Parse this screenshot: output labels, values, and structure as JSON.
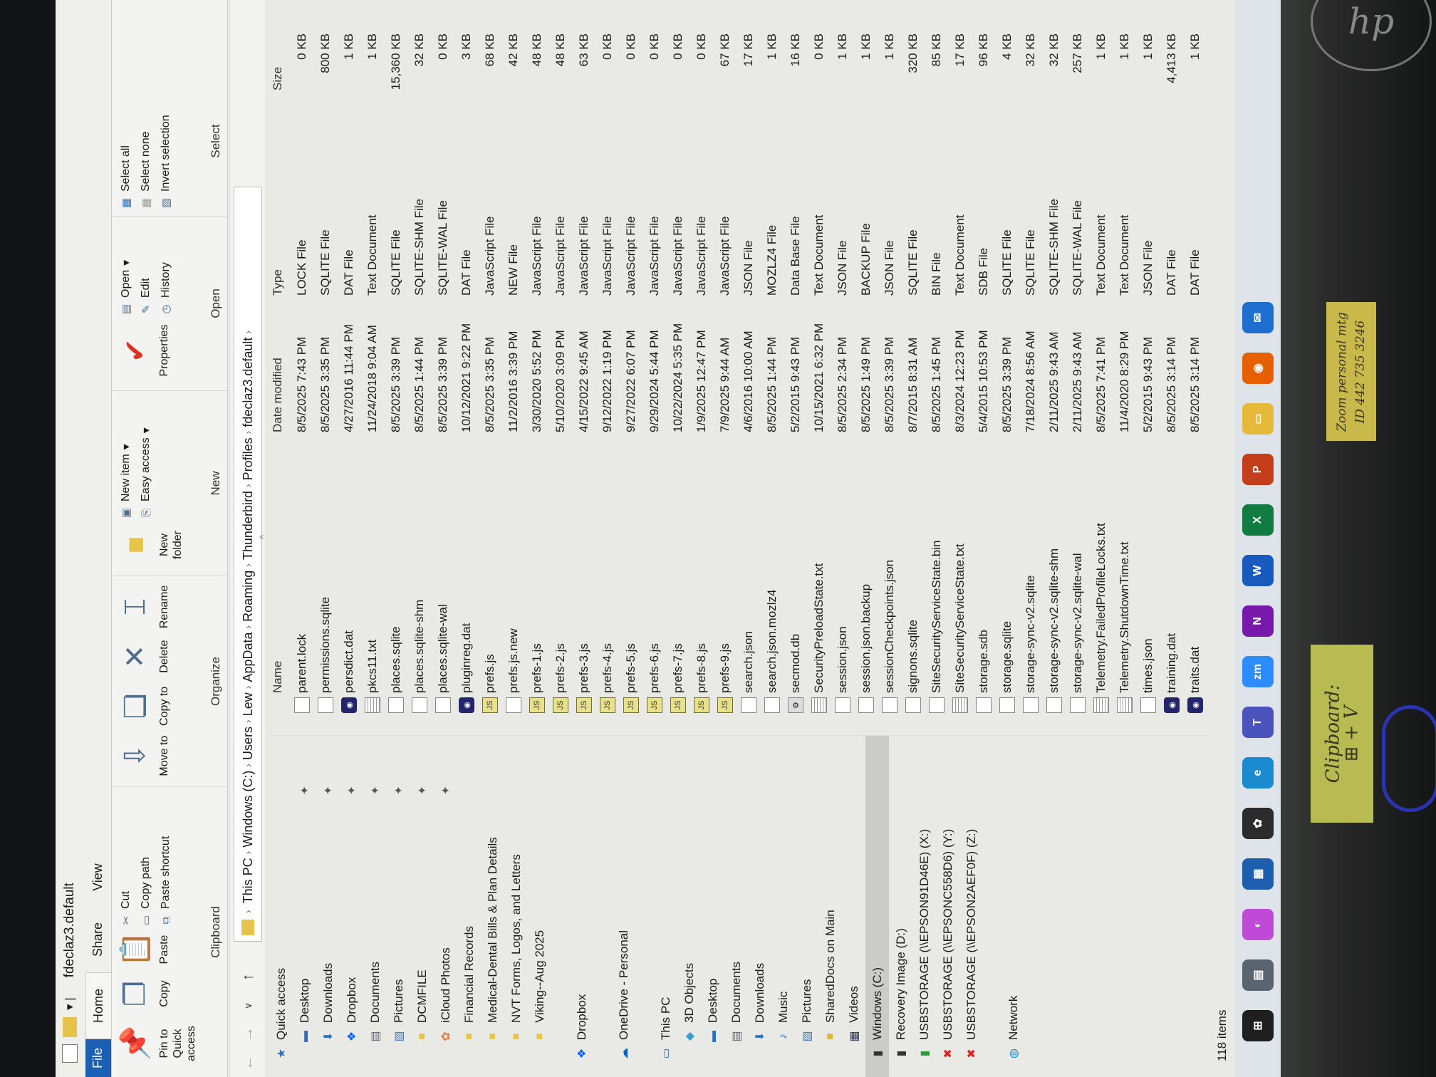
{
  "window": {
    "title": "fdeclaz3.default",
    "tabs": [
      "File",
      "Home",
      "Share",
      "View"
    ]
  },
  "ribbon": {
    "pin_label": "Pin to Quick access",
    "copy_label": "Copy",
    "paste_label": "Paste",
    "cut_label": "Cut",
    "copy_path_label": "Copy path",
    "paste_shortcut_label": "Paste shortcut",
    "clipboard_group": "Clipboard",
    "move_to_label": "Move to",
    "copy_to_label": "Copy to",
    "delete_label": "Delete",
    "rename_label": "Rename",
    "organize_group": "Organize",
    "new_folder_label": "New folder",
    "new_item_label": "New item",
    "easy_access_label": "Easy access",
    "new_group": "New",
    "properties_label": "Properties",
    "open_label": "Open",
    "edit_label": "Edit",
    "history_label": "History",
    "open_group": "Open",
    "select_all_label": "Select all",
    "select_none_label": "Select none",
    "invert_selection_label": "Invert selection",
    "select_group": "Select"
  },
  "breadcrumb": [
    "This PC",
    "Windows (C:)",
    "Users",
    "Lew",
    "AppData",
    "Roaming",
    "Thunderbird",
    "Profiles",
    "fdeclaz3.default"
  ],
  "sidebar": {
    "items": [
      {
        "label": "Quick access",
        "icon": "star-icon",
        "pinned": false
      },
      {
        "label": "Desktop",
        "icon": "desktop-icon",
        "pinned": true
      },
      {
        "label": "Downloads",
        "icon": "download-icon",
        "pinned": true
      },
      {
        "label": "Dropbox",
        "icon": "dropbox-icon",
        "pinned": true
      },
      {
        "label": "Documents",
        "icon": "documents-icon",
        "pinned": true
      },
      {
        "label": "Pictures",
        "icon": "pictures-icon",
        "pinned": true
      },
      {
        "label": "DCMFILE",
        "icon": "folder-icon",
        "pinned": true
      },
      {
        "label": "iCloud Photos",
        "icon": "icloud-photos-icon",
        "pinned": true
      },
      {
        "label": "Financial Records",
        "icon": "folder-icon",
        "pinned": false
      },
      {
        "label": "Medical-Dental Bills & Plan Details",
        "icon": "folder-icon",
        "pinned": false
      },
      {
        "label": "NVT Forms, Logos, and Letters",
        "icon": "folder-icon",
        "pinned": false
      },
      {
        "label": "Viking--Aug 2025",
        "icon": "folder-icon",
        "pinned": false
      },
      {
        "label": "Dropbox",
        "icon": "dropbox-icon",
        "pinned": false
      },
      {
        "label": "OneDrive - Personal",
        "icon": "onedrive-icon",
        "pinned": false
      },
      {
        "label": "This PC",
        "icon": "computer-icon",
        "pinned": false
      },
      {
        "label": "3D Objects",
        "icon": "3d-objects-icon",
        "pinned": false
      },
      {
        "label": "Desktop",
        "icon": "desktop-icon",
        "pinned": false
      },
      {
        "label": "Documents",
        "icon": "documents-icon",
        "pinned": false
      },
      {
        "label": "Downloads",
        "icon": "download-icon",
        "pinned": false
      },
      {
        "label": "Music",
        "icon": "music-icon",
        "pinned": false
      },
      {
        "label": "Pictures",
        "icon": "pictures-icon",
        "pinned": false
      },
      {
        "label": "SharedDocs on Main",
        "icon": "network-folder-icon",
        "pinned": false
      },
      {
        "label": "Videos",
        "icon": "videos-icon",
        "pinned": false
      },
      {
        "label": "Windows (C:)",
        "icon": "drive-icon",
        "pinned": false,
        "selected": true
      },
      {
        "label": "Recovery Image (D:)",
        "icon": "drive-icon",
        "pinned": false
      },
      {
        "label": "USBSTORAGE (\\\\EPSON91D46E) (X:)",
        "icon": "network-drive-icon",
        "pinned": false
      },
      {
        "label": "USBSTORAGE (\\\\EPSONC558D6) (Y:)",
        "icon": "disconnected-drive-icon",
        "pinned": false
      },
      {
        "label": "USBSTORAGE (\\\\EPSON2AEF0F) (Z:)",
        "icon": "disconnected-drive-icon",
        "pinned": false
      },
      {
        "label": "Network",
        "icon": "network-icon",
        "pinned": false
      }
    ]
  },
  "columns": {
    "name": "Name",
    "date": "Date modified",
    "type": "Type",
    "size": "Size"
  },
  "files": [
    {
      "name": "parent.lock",
      "date": "8/5/2025 7:43 PM",
      "type": "LOCK File",
      "size": "0 KB",
      "icon": "blank"
    },
    {
      "name": "permissions.sqlite",
      "date": "8/5/2025 3:35 PM",
      "type": "SQLITE File",
      "size": "800 KB",
      "icon": "blank"
    },
    {
      "name": "persdict.dat",
      "date": "4/27/2016 11:44 PM",
      "type": "DAT File",
      "size": "1 KB",
      "icon": "thunderbird"
    },
    {
      "name": "pkcs11.txt",
      "date": "11/24/2018 9:04 AM",
      "type": "Text Document",
      "size": "1 KB",
      "icon": "text"
    },
    {
      "name": "places.sqlite",
      "date": "8/5/2025 3:39 PM",
      "type": "SQLITE File",
      "size": "15,360 KB",
      "icon": "blank"
    },
    {
      "name": "places.sqlite-shm",
      "date": "8/5/2025 1:44 PM",
      "type": "SQLITE-SHM File",
      "size": "32 KB",
      "icon": "blank"
    },
    {
      "name": "places.sqlite-wal",
      "date": "8/5/2025 3:39 PM",
      "type": "SQLITE-WAL File",
      "size": "0 KB",
      "icon": "blank"
    },
    {
      "name": "pluginreg.dat",
      "date": "10/12/2021 9:22 PM",
      "type": "DAT File",
      "size": "3 KB",
      "icon": "thunderbird"
    },
    {
      "name": "prefs.js",
      "date": "8/5/2025 3:35 PM",
      "type": "JavaScript File",
      "size": "68 KB",
      "icon": "javascript"
    },
    {
      "name": "prefs.js.new",
      "date": "11/2/2016 3:39 PM",
      "type": "NEW File",
      "size": "42 KB",
      "icon": "blank"
    },
    {
      "name": "prefs-1.js",
      "date": "3/30/2020 5:52 PM",
      "type": "JavaScript File",
      "size": "48 KB",
      "icon": "javascript"
    },
    {
      "name": "prefs-2.js",
      "date": "5/10/2020 3:09 PM",
      "type": "JavaScript File",
      "size": "48 KB",
      "icon": "javascript"
    },
    {
      "name": "prefs-3.js",
      "date": "4/15/2022 9:45 AM",
      "type": "JavaScript File",
      "size": "63 KB",
      "icon": "javascript"
    },
    {
      "name": "prefs-4.js",
      "date": "9/12/2022 1:19 PM",
      "type": "JavaScript File",
      "size": "0 KB",
      "icon": "javascript"
    },
    {
      "name": "prefs-5.js",
      "date": "9/27/2022 6:07 PM",
      "type": "JavaScript File",
      "size": "0 KB",
      "icon": "javascript"
    },
    {
      "name": "prefs-6.js",
      "date": "9/29/2024 5:44 PM",
      "type": "JavaScript File",
      "size": "0 KB",
      "icon": "javascript"
    },
    {
      "name": "prefs-7.js",
      "date": "10/22/2024 5:35 PM",
      "type": "JavaScript File",
      "size": "0 KB",
      "icon": "javascript"
    },
    {
      "name": "prefs-8.js",
      "date": "1/9/2025 12:47 PM",
      "type": "JavaScript File",
      "size": "0 KB",
      "icon": "javascript"
    },
    {
      "name": "prefs-9.js",
      "date": "7/9/2025 9:44 AM",
      "type": "JavaScript File",
      "size": "67 KB",
      "icon": "javascript"
    },
    {
      "name": "search.json",
      "date": "4/6/2016 10:00 AM",
      "type": "JSON File",
      "size": "17 KB",
      "icon": "blank"
    },
    {
      "name": "search.json.mozlz4",
      "date": "8/5/2025 1:44 PM",
      "type": "MOZLZ4 File",
      "size": "1 KB",
      "icon": "blank"
    },
    {
      "name": "secmod.db",
      "date": "5/2/2015 9:43 PM",
      "type": "Data Base File",
      "size": "16 KB",
      "icon": "database"
    },
    {
      "name": "SecurityPreloadState.txt",
      "date": "10/15/2021 6:32 PM",
      "type": "Text Document",
      "size": "0 KB",
      "icon": "text"
    },
    {
      "name": "session.json",
      "date": "8/5/2025 2:34 PM",
      "type": "JSON File",
      "size": "1 KB",
      "icon": "blank"
    },
    {
      "name": "session.json.backup",
      "date": "8/5/2025 1:49 PM",
      "type": "BACKUP File",
      "size": "1 KB",
      "icon": "blank"
    },
    {
      "name": "sessionCheckpoints.json",
      "date": "8/5/2025 3:39 PM",
      "type": "JSON File",
      "size": "1 KB",
      "icon": "blank"
    },
    {
      "name": "signons.sqlite",
      "date": "8/7/2015 8:31 AM",
      "type": "SQLITE File",
      "size": "320 KB",
      "icon": "blank"
    },
    {
      "name": "SiteSecurityServiceState.bin",
      "date": "8/5/2025 1:45 PM",
      "type": "BIN File",
      "size": "85 KB",
      "icon": "blank"
    },
    {
      "name": "SiteSecurityServiceState.txt",
      "date": "8/3/2024 12:23 PM",
      "type": "Text Document",
      "size": "17 KB",
      "icon": "text"
    },
    {
      "name": "storage.sdb",
      "date": "5/4/2015 10:53 PM",
      "type": "SDB File",
      "size": "96 KB",
      "icon": "blank"
    },
    {
      "name": "storage.sqlite",
      "date": "8/5/2025 3:39 PM",
      "type": "SQLITE File",
      "size": "4 KB",
      "icon": "blank"
    },
    {
      "name": "storage-sync-v2.sqlite",
      "date": "7/18/2024 8:56 AM",
      "type": "SQLITE File",
      "size": "32 KB",
      "icon": "blank"
    },
    {
      "name": "storage-sync-v2.sqlite-shm",
      "date": "2/11/2025 9:43 AM",
      "type": "SQLITE-SHM File",
      "size": "32 KB",
      "icon": "blank"
    },
    {
      "name": "storage-sync-v2.sqlite-wal",
      "date": "2/11/2025 9:43 AM",
      "type": "SQLITE-WAL File",
      "size": "257 KB",
      "icon": "blank"
    },
    {
      "name": "Telemetry.FailedProfileLocks.txt",
      "date": "8/5/2025 7:41 PM",
      "type": "Text Document",
      "size": "1 KB",
      "icon": "text"
    },
    {
      "name": "Telemetry.ShutdownTime.txt",
      "date": "11/4/2020 8:29 PM",
      "type": "Text Document",
      "size": "1 KB",
      "icon": "text"
    },
    {
      "name": "times.json",
      "date": "5/2/2015 9:43 PM",
      "type": "JSON File",
      "size": "1 KB",
      "icon": "blank"
    },
    {
      "name": "training.dat",
      "date": "8/5/2025 3:14 PM",
      "type": "DAT File",
      "size": "4,413 KB",
      "icon": "thunderbird"
    },
    {
      "name": "traits.dat",
      "date": "8/5/2025 3:14 PM",
      "type": "DAT File",
      "size": "1 KB",
      "icon": "thunderbird"
    }
  ],
  "status": {
    "item_count": "118 items"
  },
  "taskbar": [
    {
      "name": "start",
      "color": "#1f1f1f",
      "glyph": "⊞"
    },
    {
      "name": "widgets",
      "color": "#5a6470",
      "glyph": "▤"
    },
    {
      "name": "copilot",
      "color": "#c04ad8",
      "glyph": "◐"
    },
    {
      "name": "microsoft-store",
      "color": "#1d5fae",
      "glyph": "▦"
    },
    {
      "name": "photos",
      "color": "#2b2b2b",
      "glyph": "✿"
    },
    {
      "name": "edge",
      "color": "#1b8bd0",
      "glyph": "e"
    },
    {
      "name": "teams",
      "color": "#4b53bc",
      "glyph": "T"
    },
    {
      "name": "zoom",
      "color": "#2d8cff",
      "glyph": "zm"
    },
    {
      "name": "onenote",
      "color": "#7719aa",
      "glyph": "N"
    },
    {
      "name": "word",
      "color": "#185abd",
      "glyph": "W"
    },
    {
      "name": "excel",
      "color": "#107c41",
      "glyph": "X"
    },
    {
      "name": "powerpoint",
      "color": "#c43e1c",
      "glyph": "P"
    },
    {
      "name": "file-explorer",
      "color": "#e6b93a",
      "glyph": "▭"
    },
    {
      "name": "firefox",
      "color": "#e66000",
      "glyph": "◉"
    },
    {
      "name": "thunderbird",
      "color": "#1f6fd0",
      "glyph": "✉"
    }
  ],
  "sticky_notes": {
    "zoom_note": "Zoom personal mtg\nID 442 735 3246",
    "clipboard_note": "Clipboard:\n⊞ + V"
  },
  "logo": "hp",
  "colors": {
    "accent": "#1a5fb4",
    "selected": "#cbcbc8",
    "folder": "#e6c34a"
  }
}
